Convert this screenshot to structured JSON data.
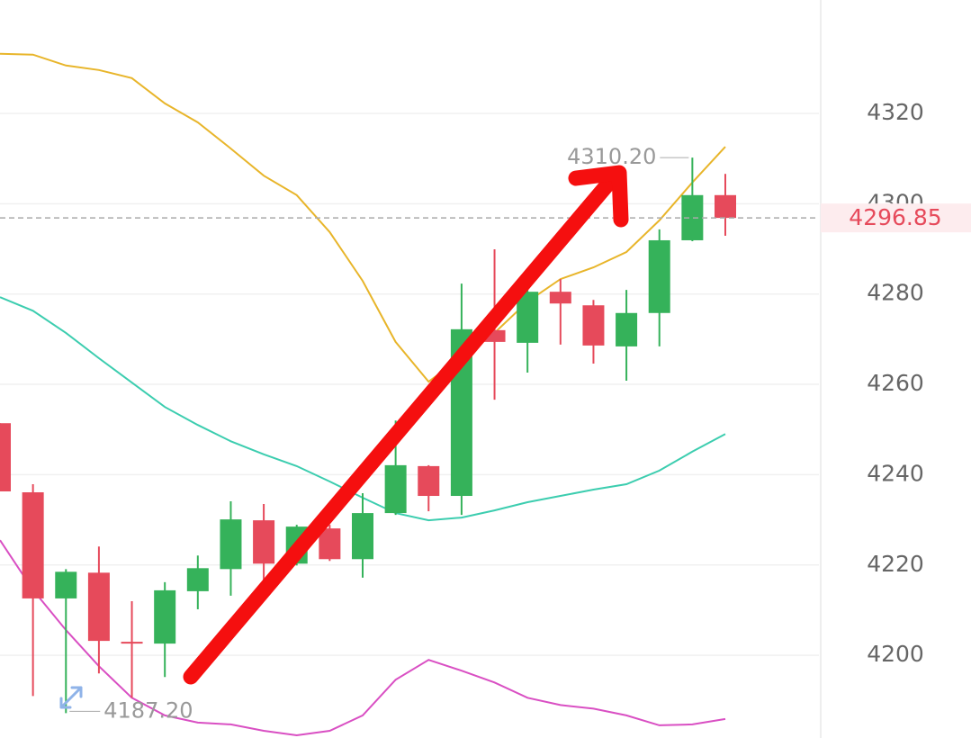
{
  "chart_data": {
    "type": "candlestick",
    "ylim": [
      4181.7,
      4345.1
    ],
    "yticks": [
      4200,
      4220,
      4240,
      4260,
      4280,
      4300,
      4320
    ],
    "grid": true,
    "up_color": "#35b25a",
    "down_color": "#e64a5b",
    "open": [
      4251.4,
      4236.1,
      4212.6,
      4218.3,
      4203.0,
      4202.6,
      4214.2,
      4219.1,
      4229.9,
      4220.3,
      4228.1,
      4221.3,
      4231.5,
      4241.9,
      4235.3,
      4272.0,
      4269.2,
      4280.5,
      4277.5,
      4268.4,
      4275.8,
      4291.9,
      4301.9
    ],
    "high": [
      4251.4,
      4237.9,
      4219.1,
      4224.1,
      4212.0,
      4216.2,
      4222.1,
      4234.1,
      4233.5,
      4228.9,
      4228.9,
      4235.9,
      4252.0,
      4242.1,
      4282.3,
      4289.9,
      4280.9,
      4283.3,
      4278.7,
      4280.9,
      4294.3,
      4310.2,
      4306.6
    ],
    "low": [
      4236.3,
      4191.0,
      4187.2,
      4196.0,
      4190.6,
      4195.2,
      4210.2,
      4213.2,
      4215.6,
      4219.9,
      4220.9,
      4217.2,
      4231.1,
      4231.9,
      4231.1,
      4256.6,
      4262.6,
      4268.8,
      4264.6,
      4260.8,
      4268.4,
      4291.7,
      4292.9
    ],
    "close": [
      4236.3,
      4212.6,
      4218.5,
      4203.2,
      4202.6,
      4214.4,
      4219.3,
      4230.1,
      4220.3,
      4228.5,
      4221.3,
      4231.5,
      4242.1,
      4235.3,
      4272.2,
      4269.4,
      4280.5,
      4277.9,
      4268.6,
      4275.8,
      4291.9,
      4301.9,
      4296.85
    ],
    "series": [
      {
        "color": "#e8b52a",
        "values": [
          4333.2,
          4333.0,
          4330.6,
          4329.6,
          4327.8,
          4322.2,
          4318.0,
          4312.2,
          4306.2,
          4301.9,
          4293.7,
          4282.9,
          4269.4,
          4260.6,
          4266.0,
          4271.4,
          4278.3,
          4283.3,
          4285.9,
          4289.3,
          4296.3,
          4304.7,
          4312.6
        ]
      },
      {
        "color": "#3ccdaf",
        "values": [
          4279.3,
          4276.3,
          4271.4,
          4265.8,
          4260.4,
          4255.0,
          4251.0,
          4247.4,
          4244.5,
          4241.9,
          4238.5,
          4234.9,
          4231.5,
          4229.9,
          4230.5,
          4232.1,
          4233.9,
          4235.3,
          4236.7,
          4237.9,
          4240.9,
          4245.1,
          4249.0
        ]
      },
      {
        "color": "#d94fc3",
        "values": [
          4225.5,
          4214.5,
          4205.6,
          4197.6,
          4190.6,
          4186.7,
          4185.1,
          4184.7,
          4183.3,
          4182.3,
          4183.3,
          4186.7,
          4194.6,
          4199.0,
          4196.6,
          4194.0,
          4190.6,
          4189.0,
          4188.2,
          4186.7,
          4184.5,
          4184.7,
          4185.9
        ]
      }
    ],
    "annotations": [
      {
        "value": 4310.2,
        "label": "4310.20"
      },
      {
        "value": 4187.2,
        "label": "4187.20"
      }
    ],
    "last_price": 4296.85,
    "last_price_color": "#e64a5b"
  }
}
